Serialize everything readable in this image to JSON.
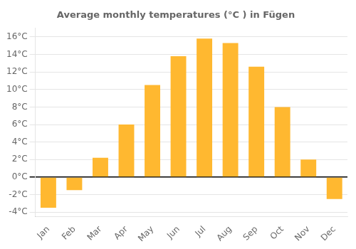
{
  "chart_data": {
    "type": "bar",
    "title": "Average monthly temperatures (°C ) in Fügen",
    "categories": [
      "Jan",
      "Feb",
      "Mar",
      "Apr",
      "May",
      "Jun",
      "Jul",
      "Aug",
      "Sep",
      "Oct",
      "Nov",
      "Dec"
    ],
    "values": [
      -3.5,
      -1.5,
      2.2,
      6.0,
      10.5,
      13.8,
      15.8,
      15.3,
      12.6,
      8.0,
      2.0,
      -2.5
    ],
    "color": "#FFB830",
    "ylim": [
      -4.5,
      17.0
    ],
    "yticks": [
      {
        "value": -4,
        "label": "-4°C"
      },
      {
        "value": -2,
        "label": "-2°C"
      },
      {
        "value": 0,
        "label": "0°C"
      },
      {
        "value": 2,
        "label": "2°C"
      },
      {
        "value": 4,
        "label": "4°C"
      },
      {
        "value": 6,
        "label": "6°C"
      },
      {
        "value": 8,
        "label": "8°C"
      },
      {
        "value": 10,
        "label": "10°C"
      },
      {
        "value": 12,
        "label": "12°C"
      },
      {
        "value": 14,
        "label": "14°C"
      },
      {
        "value": 16,
        "label": "16°C"
      }
    ],
    "grid": true
  }
}
